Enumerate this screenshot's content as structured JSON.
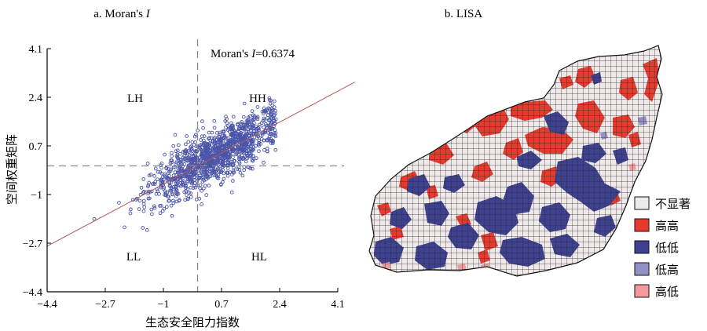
{
  "panel_a": {
    "title_prefix": "a. Moran's ",
    "title_italic": "I",
    "stat_prefix": "Moran's ",
    "stat_italic": "I",
    "stat_value": "=0.6374",
    "quadrants": {
      "lh": "LH",
      "hh": "HH",
      "ll": "LL",
      "hl": "HL"
    }
  },
  "panel_b": {
    "title": "b. LISA",
    "legend": [
      {
        "label": "不显著",
        "color": "#efe9e9"
      },
      {
        "label": "高高",
        "color": "#e53a2e"
      },
      {
        "label": "低低",
        "color": "#3e418f"
      },
      {
        "label": "低高",
        "color": "#9390c6"
      },
      {
        "label": "高低",
        "color": "#f49a9e"
      }
    ]
  },
  "chart_data": [
    {
      "type": "scatter",
      "title": "a. Moran's I",
      "xlabel": "生态安全阻力指数",
      "ylabel": "空间权重矩阵",
      "xlim": [
        -4.4,
        4.1
      ],
      "ylim": [
        -4.4,
        4.1
      ],
      "x_ticks": [
        -4.4,
        -2.7,
        -1,
        0.7,
        2.4,
        4.1
      ],
      "x_tick_labels": [
        "−4.4",
        "−2.7",
        "−1",
        "0.7",
        "2.4",
        "4.1"
      ],
      "y_ticks": [
        -4.4,
        -2.7,
        -1,
        0.7,
        2.4,
        4.1
      ],
      "y_tick_labels": [
        "−4.4",
        "−2.7",
        "−1",
        "0.7",
        "2.4",
        "4.1"
      ],
      "reference_lines": {
        "x": 0,
        "y": 0
      },
      "regression_line": {
        "slope": 0.6374,
        "intercept": 0
      },
      "moran_i": 0.6374,
      "point_color": "#4a54a8",
      "line_color": "#b45a5a",
      "grid": false,
      "legend": "none"
    },
    {
      "type": "heatmap",
      "title": "b. LISA",
      "categories": [
        "不显著",
        "高高",
        "低低",
        "低高",
        "高低"
      ],
      "colors": [
        "#efe9e9",
        "#e53a2e",
        "#3e418f",
        "#9390c6",
        "#f49a9e"
      ],
      "legend": "right"
    }
  ]
}
